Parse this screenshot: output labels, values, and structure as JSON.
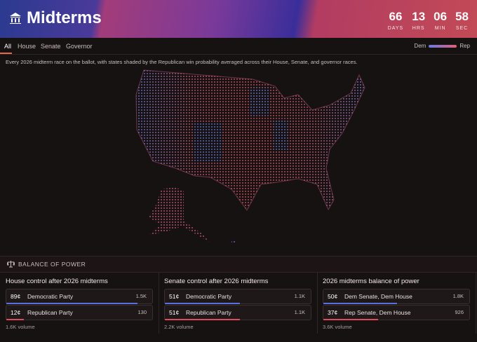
{
  "header": {
    "title": "Midterms",
    "countdown": [
      {
        "value": "66",
        "label": "DAYS"
      },
      {
        "value": "13",
        "label": "HRS"
      },
      {
        "value": "06",
        "label": "MIN"
      },
      {
        "value": "58",
        "label": "SEC"
      }
    ]
  },
  "tabs": [
    "All",
    "House",
    "Senate",
    "Governor"
  ],
  "legend": {
    "low": "Dem",
    "high": "Rep"
  },
  "description": "Every 2026 midterm race on the ballot, with states shaded by the Republican win probability averaged across their House, Senate, and governor races.",
  "section_title": "BALANCE OF POWER",
  "markets": [
    {
      "title": "House control after 2026 midterms",
      "volume": "1.6K volume",
      "outcomes": [
        {
          "price": 89,
          "price_label": "89¢",
          "name": "Democratic Party",
          "volume": "1.5K"
        },
        {
          "price": 12,
          "price_label": "12¢",
          "name": "Republican Party",
          "volume": "130"
        }
      ]
    },
    {
      "title": "Senate control after 2026 midterms",
      "volume": "2.2K volume",
      "outcomes": [
        {
          "price": 51,
          "price_label": "51¢",
          "name": "Democratic Party",
          "volume": "1.1K"
        },
        {
          "price": 51,
          "price_label": "51¢",
          "name": "Republican Party",
          "volume": "1.1K"
        }
      ]
    },
    {
      "title": "2026 midterms balance of power",
      "volume": "3.6K volume",
      "outcomes": [
        {
          "price": 50,
          "price_label": "50¢",
          "name": "Dem Senate, Dem House",
          "volume": "1.8K"
        },
        {
          "price": 37,
          "price_label": "37¢",
          "name": "Rep Senate, Dem House",
          "volume": "926"
        }
      ]
    }
  ]
}
